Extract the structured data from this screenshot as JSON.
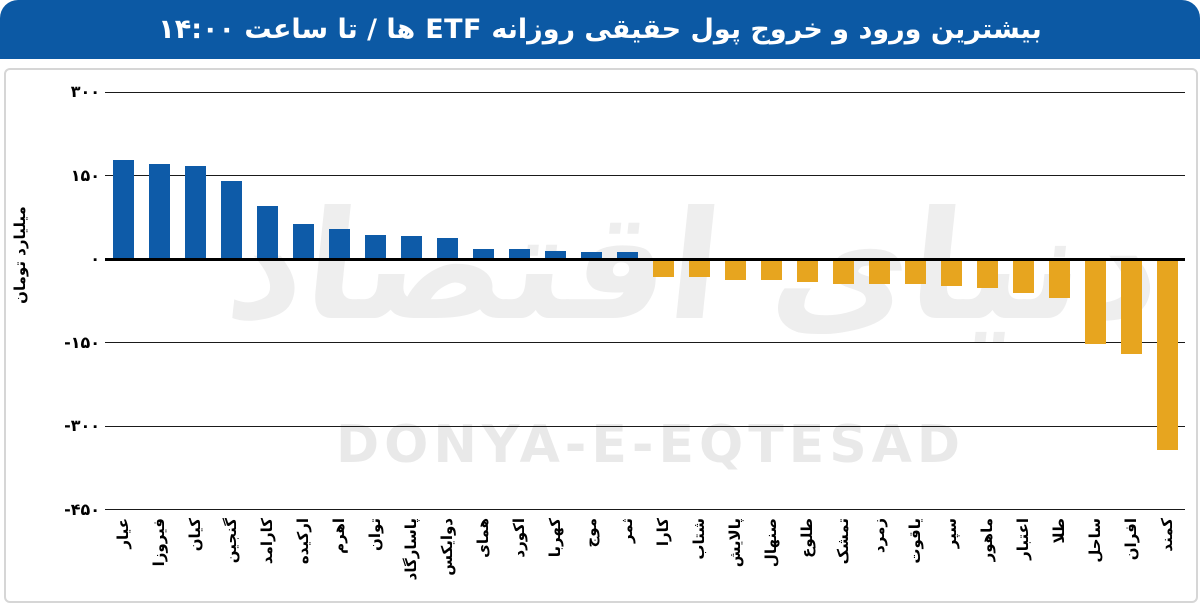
{
  "header": {
    "title": "بیشترین ورود و خروج پول حقیقی روزانه ETF ها / تا ساعت ۱۴:۰۰",
    "bg_color": "#0c59a4",
    "text_color": "#ffffff"
  },
  "watermark": {
    "fa": "دنیای اقتصاد",
    "en": "DONYA-E-EQTESAD"
  },
  "chart_data": {
    "type": "bar",
    "title": "بیشترین ورود و خروج پول حقیقی روزانه ETF ها / تا ساعت ۱۴:۰۰",
    "ylabel": "میلیارد تومان",
    "xlabel": "",
    "ylim": [
      -450,
      300
    ],
    "grid": true,
    "legend": false,
    "gridline_values": [
      300,
      150,
      0,
      -150,
      -300,
      -450
    ],
    "ytick_labels": [
      "۳۰۰",
      "۱۵۰",
      "۰",
      "-۱۵۰",
      "-۳۰۰",
      "-۴۵۰"
    ],
    "positive_color": "#0e5ba8",
    "negative_color": "#e7a51f",
    "categories": [
      "عیار",
      "فیروزا",
      "کیان",
      "گنجین",
      "کارامد",
      "ارکیده",
      "اهرم",
      "توان",
      "پاسارگاد",
      "دوایکس",
      "همای",
      "اکورد",
      "کهربا",
      "موج",
      "ثمر",
      "کارا",
      "شتاب",
      "پالایش",
      "صنهال",
      "طلوع",
      "تمشک",
      "زمرد",
      "یاقوت",
      "سپر",
      "ماهور",
      "اعتبار",
      "طلا",
      "ساحل",
      "افران",
      "کمند"
    ],
    "values": [
      175,
      168,
      165,
      138,
      93,
      61,
      52,
      41,
      39,
      36,
      16,
      15,
      13,
      11,
      10,
      -30,
      -30,
      -35,
      -35,
      -38,
      -41,
      -41,
      -42,
      -46,
      -48,
      -57,
      -66,
      -149,
      -168,
      -340
    ]
  }
}
